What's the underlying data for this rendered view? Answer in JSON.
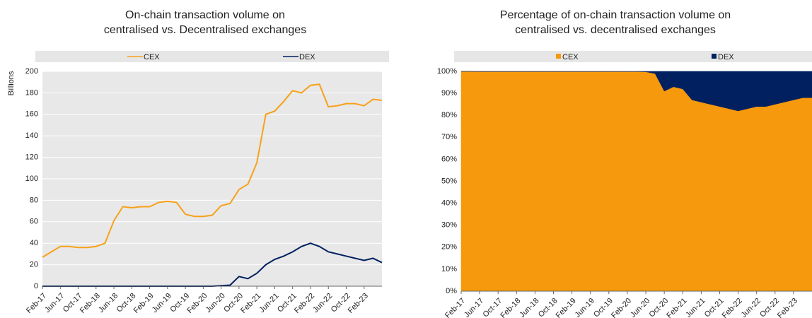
{
  "chart_data": [
    {
      "type": "line",
      "title": [
        "On-chain transaction volume on",
        "centralised vs. Decentralised exchanges"
      ],
      "y_label": "Billions",
      "categories": [
        "Feb-17",
        null,
        "Jun-17",
        null,
        "Oct-17",
        null,
        "Feb-18",
        null,
        "Jun-18",
        null,
        "Oct-18",
        null,
        "Feb-19",
        null,
        "Jun-19",
        null,
        "Oct-19",
        null,
        "Feb-20",
        null,
        "Jun-20",
        null,
        "Oct-20",
        null,
        "Feb-21",
        null,
        "Jun-21",
        null,
        "Oct-21",
        null,
        "Feb-22",
        null,
        "Jun-22",
        null,
        "Oct-22",
        null,
        "Feb-23",
        null,
        null
      ],
      "series": [
        {
          "name": "CEX",
          "color": "#f7a11a",
          "values": [
            27,
            32,
            37,
            37,
            36,
            36,
            37,
            40,
            61,
            74,
            73,
            74,
            74,
            78,
            79,
            78,
            67,
            65,
            65,
            66,
            75,
            77,
            90,
            95,
            115,
            160,
            163,
            172,
            182,
            180,
            187,
            188,
            167,
            168,
            170,
            170,
            168,
            174,
            173
          ]
        },
        {
          "name": "DEX",
          "color": "#002060",
          "values": [
            0,
            0,
            0,
            0,
            0,
            0,
            0,
            0,
            0,
            0,
            0,
            0,
            0,
            0,
            0,
            0,
            0,
            0,
            0,
            0,
            0.5,
            1,
            9,
            7,
            12,
            20,
            25,
            28,
            32,
            37,
            40,
            37,
            32,
            30,
            28,
            26,
            24,
            26,
            22
          ]
        }
      ],
      "ylim": [
        0,
        200
      ],
      "yticks": [
        0,
        20,
        40,
        60,
        80,
        100,
        120,
        140,
        160,
        180,
        200
      ],
      "grid": true
    },
    {
      "type": "stacked_area",
      "title": [
        "Percentage of on-chain transaction volume on",
        "centralised vs. decentralised exchanges"
      ],
      "categories": [
        "Feb-17",
        null,
        "Jun-17",
        null,
        "Oct-17",
        null,
        "Feb-18",
        null,
        "Jun-18",
        null,
        "Oct-18",
        null,
        "Feb-19",
        null,
        "Jun-19",
        null,
        "Oct-19",
        null,
        "Feb-20",
        null,
        "Jun-20",
        null,
        "Oct-20",
        null,
        "Feb-21",
        null,
        "Jun-21",
        null,
        "Oct-21",
        null,
        "Feb-22",
        null,
        "Jun-22",
        null,
        "Oct-22",
        null,
        "Feb-23",
        null,
        null
      ],
      "series": [
        {
          "name": "CEX",
          "color": "#f7990c",
          "values": [
            100,
            100,
            99.9,
            99.9,
            99.9,
            99.9,
            99.9,
            99.9,
            99.9,
            99.9,
            99.9,
            99.9,
            99.9,
            99.9,
            99.9,
            99.9,
            99.9,
            99.9,
            99.9,
            99.9,
            99.8,
            99,
            91,
            93,
            92,
            87,
            86,
            85,
            84,
            83,
            82,
            83,
            84,
            84,
            85,
            86,
            87,
            88,
            88
          ]
        },
        {
          "name": "DEX",
          "color": "#002060",
          "values": [
            0,
            0,
            0.1,
            0.1,
            0.1,
            0.1,
            0.1,
            0.1,
            0.1,
            0.1,
            0.1,
            0.1,
            0.1,
            0.1,
            0.1,
            0.1,
            0.1,
            0.1,
            0.1,
            0.1,
            0.2,
            1,
            9,
            7,
            8,
            13,
            14,
            15,
            16,
            17,
            18,
            17,
            16,
            16,
            15,
            14,
            13,
            12,
            12
          ]
        }
      ],
      "ylim": [
        0,
        100
      ],
      "yticks": [
        {
          "value": 0,
          "label": "0%"
        },
        {
          "value": 10,
          "label": "10%"
        },
        {
          "value": 20,
          "label": "20%"
        },
        {
          "value": 30,
          "label": "30%"
        },
        {
          "value": 40,
          "label": "40%"
        },
        {
          "value": 50,
          "label": "50%"
        },
        {
          "value": 60,
          "label": "60%"
        },
        {
          "value": 70,
          "label": "70%"
        },
        {
          "value": 80,
          "label": "80%"
        },
        {
          "value": 90,
          "label": "90%"
        },
        {
          "value": 100,
          "label": "100%"
        }
      ]
    }
  ]
}
